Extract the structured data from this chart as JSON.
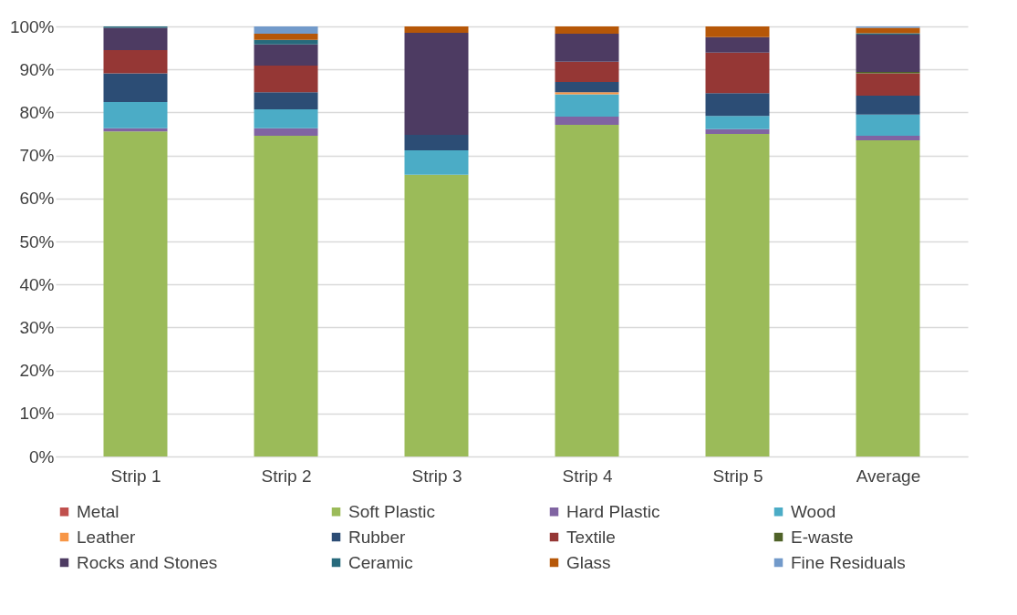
{
  "chart_data": {
    "type": "bar",
    "stacked": true,
    "categories": [
      "Strip 1",
      "Strip 2",
      "Strip 3",
      "Strip 4",
      "Strip 5",
      "Average"
    ],
    "series": [
      {
        "name": "Metal",
        "color": "#c0504d",
        "values": [
          0,
          0,
          0,
          0,
          0,
          0
        ]
      },
      {
        "name": "Soft Plastic",
        "color": "#9bbb59",
        "values": [
          75.6,
          74.6,
          65.5,
          77.1,
          75.0,
          73.5
        ]
      },
      {
        "name": "Hard Plastic",
        "color": "#8064a2",
        "values": [
          0.7,
          1.7,
          0,
          1.9,
          1.1,
          1.1
        ]
      },
      {
        "name": "Wood",
        "color": "#4bacc6",
        "values": [
          6.1,
          4.4,
          5.7,
          5.2,
          3.1,
          4.9
        ]
      },
      {
        "name": "Leather",
        "color": "#f79646",
        "values": [
          0,
          0,
          0,
          0.5,
          0,
          0
        ]
      },
      {
        "name": "Rubber",
        "color": "#2c4d75",
        "values": [
          6.7,
          4.0,
          3.6,
          2.4,
          5.3,
          4.4
        ]
      },
      {
        "name": "Textile",
        "color": "#953735",
        "values": [
          5.4,
          6.2,
          0,
          4.7,
          9.4,
          5.2
        ]
      },
      {
        "name": "E-waste",
        "color": "#4f6228",
        "values": [
          0,
          0,
          0,
          0,
          0,
          0.3
        ]
      },
      {
        "name": "Rocks and Stones",
        "color": "#4d3b62",
        "values": [
          5.2,
          4.9,
          23.7,
          6.5,
          3.6,
          8.7
        ]
      },
      {
        "name": "Ceramic",
        "color": "#276a7c",
        "values": [
          0.3,
          1.1,
          0,
          0,
          0,
          0.3
        ]
      },
      {
        "name": "Glass",
        "color": "#b65708",
        "values": [
          0,
          1.4,
          1.5,
          1.7,
          2.5,
          1.3
        ]
      },
      {
        "name": "Fine Residuals",
        "color": "#729aca",
        "values": [
          0,
          1.7,
          0,
          0,
          0,
          0.3
        ]
      }
    ],
    "ylim": [
      0,
      100
    ],
    "yticks": [
      {
        "value": 0,
        "label": "0%"
      },
      {
        "value": 10,
        "label": "10%"
      },
      {
        "value": 20,
        "label": "20%"
      },
      {
        "value": 30,
        "label": "30%"
      },
      {
        "value": 40,
        "label": "40%"
      },
      {
        "value": 50,
        "label": "50%"
      },
      {
        "value": 60,
        "label": "60%"
      },
      {
        "value": 70,
        "label": "70%"
      },
      {
        "value": 80,
        "label": "80%"
      },
      {
        "value": 90,
        "label": "90%"
      },
      {
        "value": 100,
        "label": "100%"
      }
    ],
    "grid": "y",
    "legend": "bottom"
  }
}
